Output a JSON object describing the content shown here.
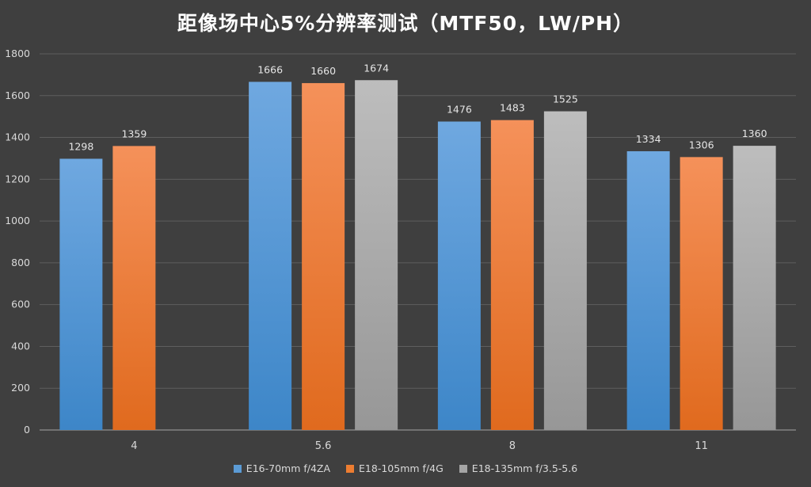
{
  "chart_data": {
    "type": "bar",
    "title": "距像场中心5%分辨率测试（MTF50，LW/PH）",
    "xlabel": "",
    "ylabel": "",
    "categories": [
      "4",
      "5.6",
      "8",
      "11"
    ],
    "ylim": [
      0,
      1800
    ],
    "yticks": [
      0,
      200,
      400,
      600,
      800,
      1000,
      1200,
      1400,
      1600,
      1800
    ],
    "grid": true,
    "legend_position": "bottom",
    "series": [
      {
        "name": "E16-70mm f/4ZA",
        "color": "#5b9bd5",
        "values": [
          1298,
          1666,
          1476,
          1334
        ]
      },
      {
        "name": "E18-105mm f/4G",
        "color": "#ed7d31",
        "values": [
          1359,
          1660,
          1483,
          1306
        ]
      },
      {
        "name": "E18-135mm f/3.5-5.6",
        "color": "#a5a5a5",
        "values": [
          null,
          1674,
          1525,
          1360
        ]
      }
    ]
  }
}
